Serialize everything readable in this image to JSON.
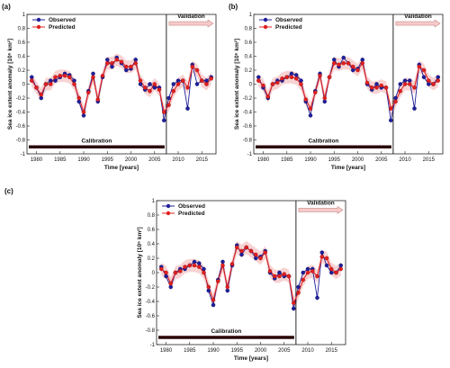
{
  "chart_data": [
    {
      "panel_label": "(a)",
      "type": "line",
      "xlabel": "Time [years]",
      "ylabel": "Sea ice extent anomaly [10⁶ km²]",
      "xlim": [
        1978,
        2018
      ],
      "ylim": [
        -1,
        1
      ],
      "xticks": [
        "1980",
        "1985",
        "1990",
        "1995",
        "2000",
        "2005",
        "2010",
        "2015"
      ],
      "yticks": [
        "-1",
        "-0.8",
        "-0.6",
        "-0.4",
        "-0.2",
        "0",
        "0.2",
        "0.4",
        "0.6",
        "0.8",
        "1"
      ],
      "legend": {
        "position": "top-left",
        "entries": [
          "Observed",
          "Predicted"
        ]
      },
      "annotations": {
        "calibration_label": "Calibration",
        "validation_label": "Validation",
        "split_year": 2007.5
      },
      "x": [
        1979,
        1980,
        1981,
        1982,
        1983,
        1984,
        1985,
        1986,
        1987,
        1988,
        1989,
        1990,
        1991,
        1992,
        1993,
        1994,
        1995,
        1996,
        1997,
        1998,
        1999,
        2000,
        2001,
        2002,
        2003,
        2004,
        2005,
        2006,
        2007,
        2008,
        2009,
        2010,
        2011,
        2012,
        2013,
        2014,
        2015,
        2016,
        2017
      ],
      "series": [
        {
          "name": "Observed",
          "color": "#1f1f9a",
          "values": [
            0.1,
            -0.05,
            -0.2,
            0.0,
            0.05,
            0.05,
            0.1,
            0.15,
            0.13,
            0.05,
            -0.25,
            -0.45,
            -0.1,
            0.15,
            -0.25,
            0.1,
            0.35,
            0.25,
            0.38,
            0.3,
            0.2,
            0.22,
            0.35,
            0.0,
            -0.08,
            0.0,
            -0.05,
            -0.05,
            -0.52,
            -0.2,
            0.0,
            0.05,
            0.05,
            -0.35,
            0.28,
            0.0,
            0.05,
            0.05,
            0.1
          ]
        },
        {
          "name": "Predicted",
          "color": "#e02020",
          "values": [
            0.05,
            -0.05,
            -0.15,
            0.0,
            0.0,
            0.1,
            0.12,
            0.12,
            0.1,
            0.0,
            -0.2,
            -0.4,
            -0.12,
            0.1,
            -0.22,
            0.12,
            0.3,
            0.3,
            0.35,
            0.32,
            0.25,
            0.25,
            0.3,
            0.05,
            -0.05,
            -0.1,
            0.0,
            -0.08,
            -0.4,
            -0.3,
            -0.1,
            0.0,
            0.05,
            -0.05,
            0.25,
            0.2,
            0.05,
            0.0,
            0.08
          ]
        }
      ]
    },
    {
      "panel_label": "(b)",
      "type": "line",
      "xlabel": "Time [years]",
      "ylabel": "Sea ice extent anomaly [10⁶ km²]",
      "xlim": [
        1978,
        2018
      ],
      "ylim": [
        -1,
        1
      ],
      "xticks": [
        "1980",
        "1985",
        "1990",
        "1995",
        "2000",
        "2005",
        "2010",
        "2015"
      ],
      "yticks": [
        "-1",
        "-0.8",
        "-0.6",
        "-0.4",
        "-0.2",
        "0",
        "0.2",
        "0.4",
        "0.6",
        "0.8",
        "1"
      ],
      "legend": {
        "position": "top-left",
        "entries": [
          "Observed",
          "Predicted"
        ]
      },
      "annotations": {
        "calibration_label": "Calibration",
        "validation_label": "Validation",
        "split_year": 2007.5
      },
      "x": [
        1979,
        1980,
        1981,
        1982,
        1983,
        1984,
        1985,
        1986,
        1987,
        1988,
        1989,
        1990,
        1991,
        1992,
        1993,
        1994,
        1995,
        1996,
        1997,
        1998,
        1999,
        2000,
        2001,
        2002,
        2003,
        2004,
        2005,
        2006,
        2007,
        2008,
        2009,
        2010,
        2011,
        2012,
        2013,
        2014,
        2015,
        2016,
        2017
      ],
      "series": [
        {
          "name": "Observed",
          "color": "#1f1f9a",
          "values": [
            0.1,
            -0.05,
            -0.2,
            0.0,
            0.05,
            0.05,
            0.1,
            0.15,
            0.13,
            0.05,
            -0.25,
            -0.45,
            -0.1,
            0.15,
            -0.25,
            0.1,
            0.35,
            0.25,
            0.38,
            0.3,
            0.2,
            0.22,
            0.35,
            0.0,
            -0.08,
            0.0,
            -0.05,
            -0.05,
            -0.52,
            -0.2,
            0.0,
            0.05,
            0.05,
            -0.35,
            0.28,
            0.1,
            0.0,
            0.0,
            0.1
          ]
        },
        {
          "name": "Predicted",
          "color": "#e02020",
          "values": [
            0.05,
            -0.02,
            -0.18,
            0.0,
            0.02,
            0.08,
            0.1,
            0.1,
            0.08,
            0.0,
            -0.22,
            -0.35,
            -0.12,
            0.12,
            -0.2,
            0.1,
            0.3,
            0.28,
            0.3,
            0.3,
            0.25,
            0.2,
            0.3,
            0.02,
            -0.05,
            -0.05,
            -0.02,
            -0.05,
            -0.35,
            -0.25,
            -0.1,
            0.0,
            0.0,
            -0.05,
            0.25,
            0.2,
            0.05,
            0.0,
            0.05
          ]
        }
      ]
    },
    {
      "panel_label": "(c)",
      "type": "line",
      "xlabel": "Time [years]",
      "ylabel": "Sea ice extent anomaly [10⁶ km²]",
      "xlim": [
        1978,
        2018
      ],
      "ylim": [
        -1,
        1
      ],
      "xticks": [
        "1980",
        "1985",
        "1990",
        "1995",
        "2000",
        "2005",
        "2010",
        "2015"
      ],
      "yticks": [
        "-1",
        "-0.8",
        "-0.6",
        "-0.4",
        "-0.2",
        "0",
        "0.2",
        "0.4",
        "0.6",
        "0.8",
        "1"
      ],
      "legend": {
        "position": "top-left",
        "entries": [
          "Observed",
          "Predicted"
        ]
      },
      "annotations": {
        "calibration_label": "Calibration",
        "validation_label": "Validation",
        "split_year": 2007.5
      },
      "x": [
        1979,
        1980,
        1981,
        1982,
        1983,
        1984,
        1985,
        1986,
        1987,
        1988,
        1989,
        1990,
        1991,
        1992,
        1993,
        1994,
        1995,
        1996,
        1997,
        1998,
        1999,
        2000,
        2001,
        2002,
        2003,
        2004,
        2005,
        2006,
        2007,
        2008,
        2009,
        2010,
        2011,
        2012,
        2013,
        2014,
        2015,
        2016,
        2017
      ],
      "series": [
        {
          "name": "Observed",
          "color": "#1f1f9a",
          "values": [
            0.08,
            -0.05,
            -0.2,
            0.0,
            0.05,
            0.05,
            0.1,
            0.15,
            0.13,
            0.05,
            -0.25,
            -0.45,
            -0.1,
            0.15,
            -0.25,
            0.1,
            0.38,
            0.25,
            0.35,
            0.3,
            0.2,
            0.22,
            0.3,
            0.0,
            -0.08,
            0.0,
            -0.05,
            -0.05,
            -0.5,
            -0.2,
            0.0,
            0.05,
            0.05,
            -0.35,
            0.28,
            0.1,
            0.0,
            0.0,
            0.1
          ]
        },
        {
          "name": "Predicted",
          "color": "#e02020",
          "values": [
            0.05,
            0.0,
            -0.15,
            0.0,
            0.02,
            0.08,
            0.1,
            0.1,
            0.08,
            0.0,
            -0.2,
            -0.38,
            -0.12,
            0.1,
            -0.2,
            0.12,
            0.35,
            0.3,
            0.35,
            0.3,
            0.25,
            0.2,
            0.28,
            0.02,
            -0.05,
            -0.05,
            -0.02,
            -0.05,
            -0.42,
            -0.28,
            -0.1,
            0.0,
            0.02,
            -0.05,
            0.22,
            0.2,
            0.05,
            0.0,
            0.05
          ]
        }
      ]
    }
  ]
}
